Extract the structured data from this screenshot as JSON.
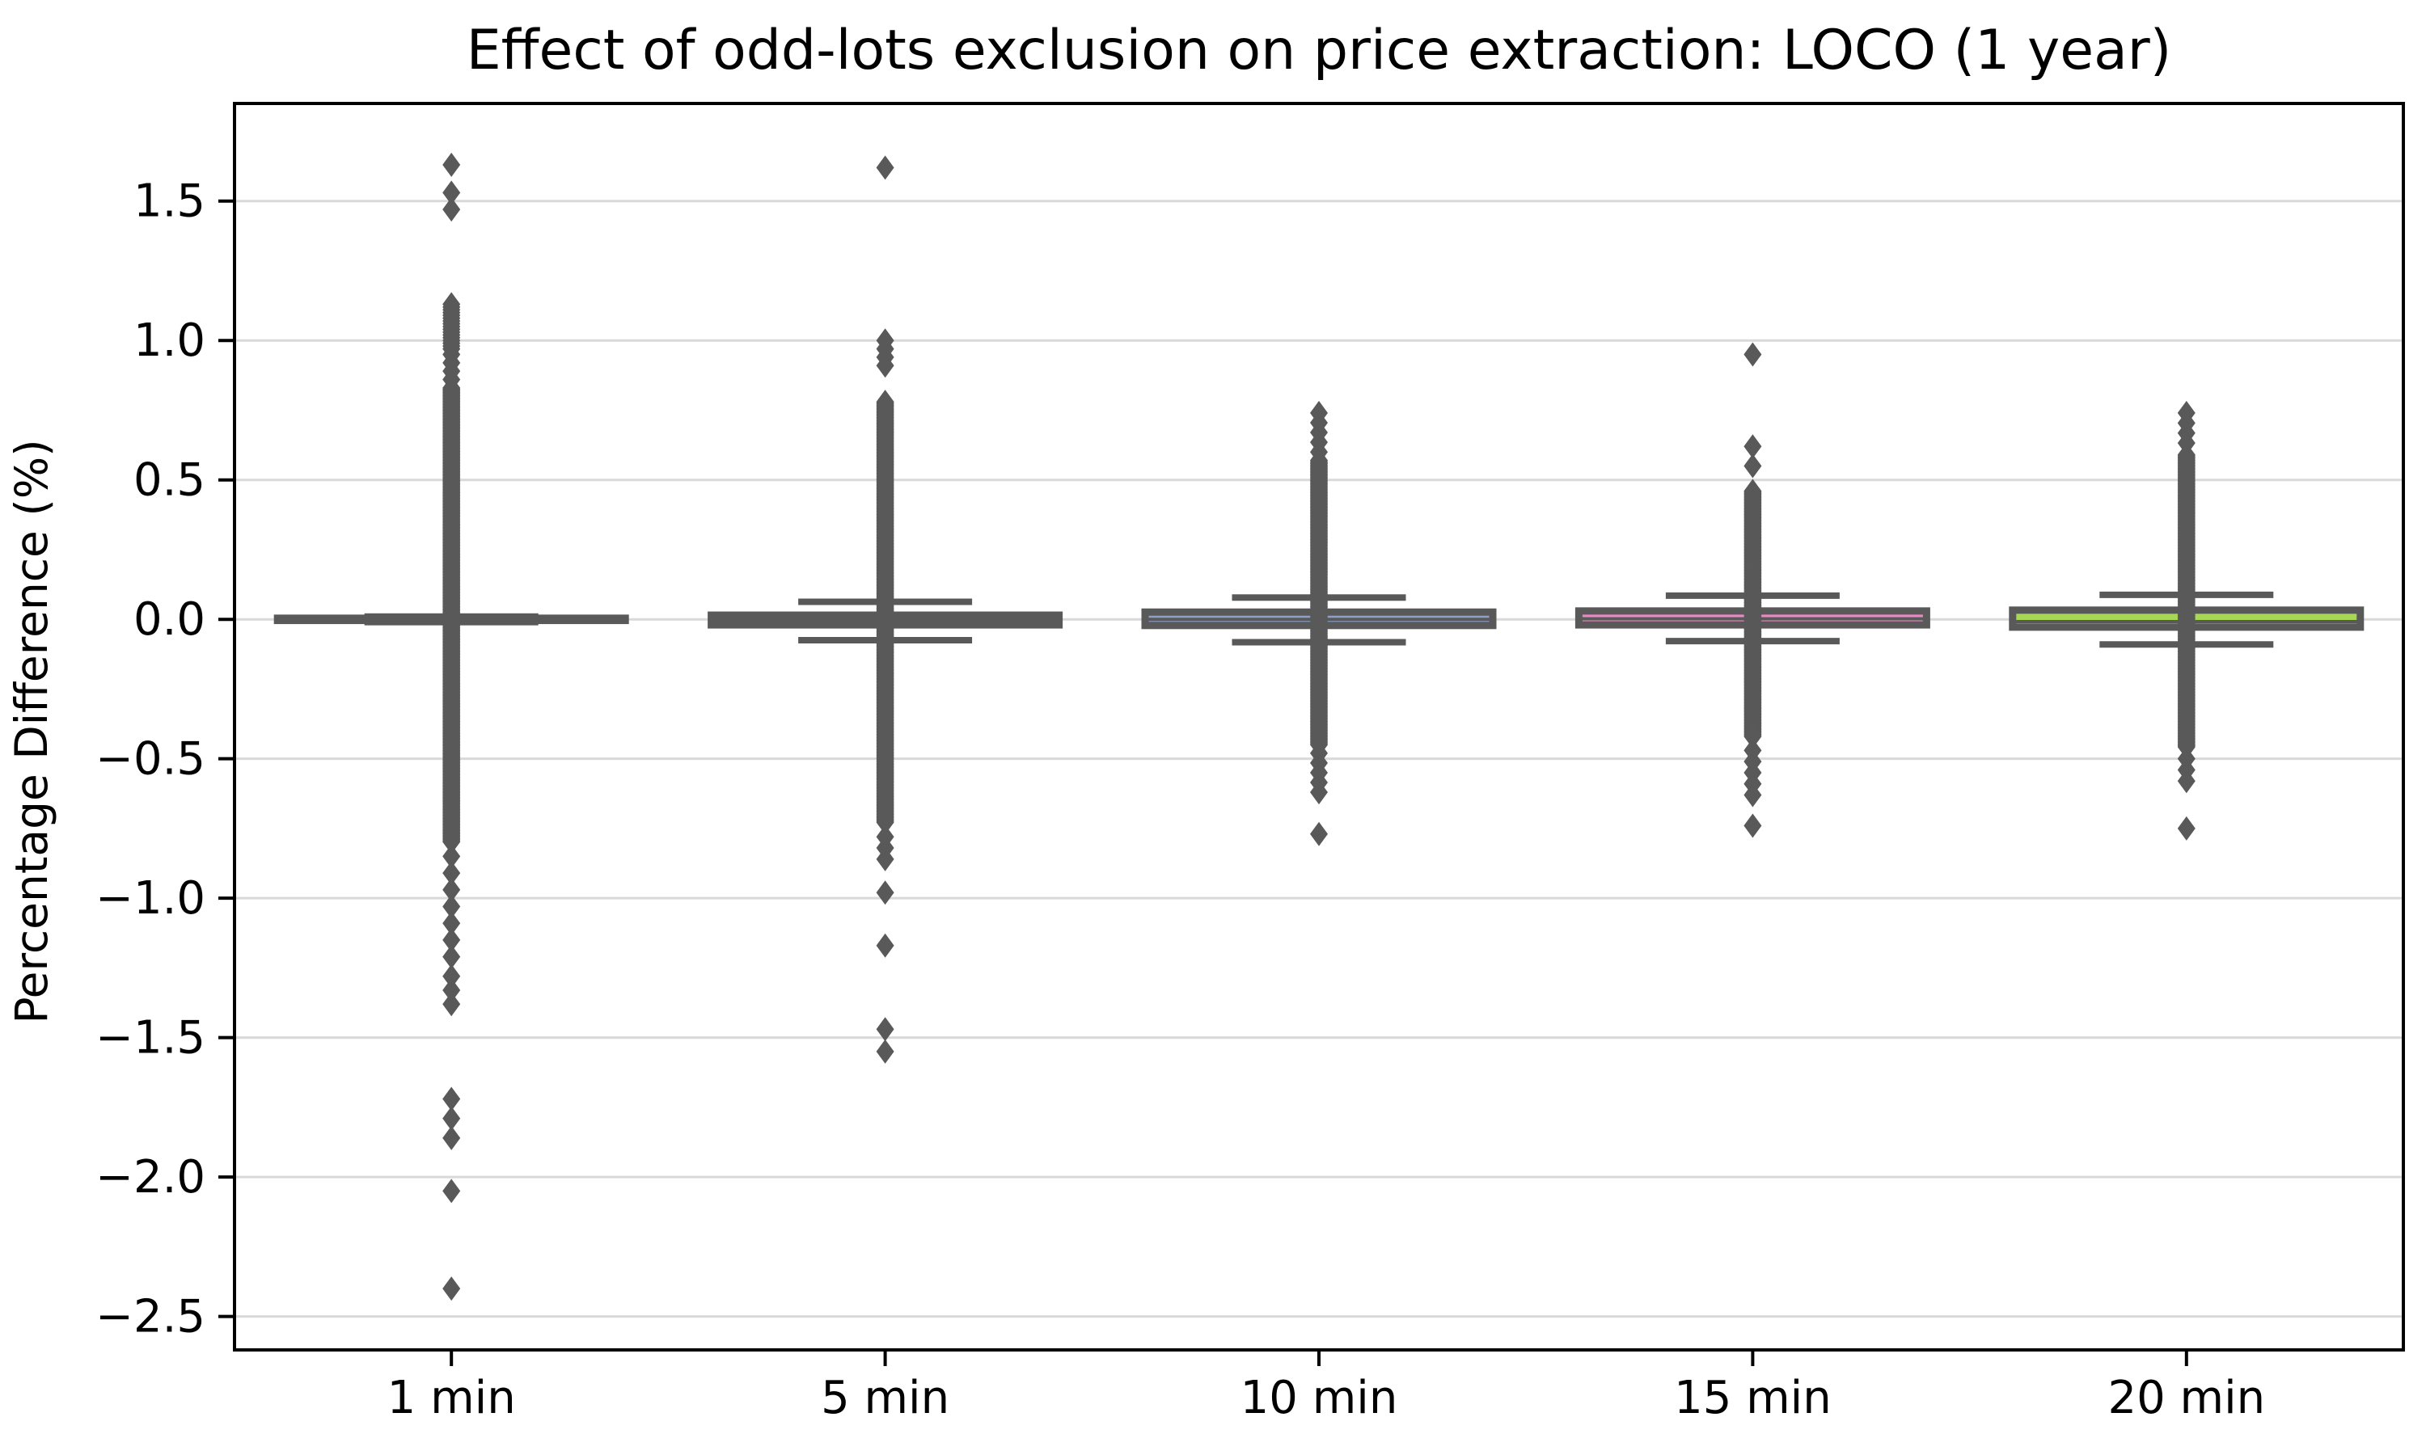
{
  "chart_data": {
    "type": "box",
    "title": "Effect of odd-lots exclusion on price extraction: LOCO (1 year)",
    "ylabel": "Percentage Difference (%)",
    "xlabel": "",
    "categories": [
      "1 min",
      "5 min",
      "10 min",
      "15 min",
      "20 min"
    ],
    "ylim": [
      -2.62,
      1.85
    ],
    "ytick_values": [
      1.5,
      1.0,
      0.5,
      0.0,
      -0.5,
      -1.0,
      -1.5,
      -2.0,
      -2.5
    ],
    "ytick_labels": [
      "1.5",
      "1.0",
      "0.5",
      "0.0",
      "−0.5",
      "−1.0",
      "−1.5",
      "−2.0",
      "−2.5"
    ],
    "grid": true,
    "legend": "none",
    "palette": [
      "#66C2A5",
      "#FC8D62",
      "#8DA0CB",
      "#E78AC3",
      "#A6D854"
    ],
    "edge_color": "#595959",
    "flier_color": "#595959",
    "grid_color": "#d9d9d9",
    "flier_marker": "thin-diamond",
    "series": [
      {
        "label": "1 min",
        "median": 0.0,
        "q1": -0.004,
        "q3": 0.004,
        "whisker_low": -0.01,
        "whisker_high": 0.01,
        "outlier_runs": [
          {
            "from": 1.13,
            "to": 0.97,
            "step": 0.01
          },
          {
            "from": 0.95,
            "to": 0.86,
            "step": 0.03
          },
          {
            "from": 0.83,
            "to": -0.8,
            "step": 0.004
          },
          {
            "from": -0.85,
            "to": -1.21,
            "step": 0.06
          },
          {
            "from": -1.28,
            "to": -1.38,
            "step": 0.05
          }
        ],
        "outliers": [
          1.63,
          1.53,
          1.47,
          -1.72,
          -1.79,
          -1.86,
          -2.05,
          -2.4
        ]
      },
      {
        "label": "5 min",
        "median": -0.003,
        "q1": -0.02,
        "q3": 0.015,
        "whisker_low": -0.075,
        "whisker_high": 0.063,
        "outlier_runs": [
          {
            "from": 1.0,
            "to": 0.91,
            "step": 0.03
          },
          {
            "from": 0.78,
            "to": -0.73,
            "step": 0.004
          },
          {
            "from": -0.78,
            "to": -0.86,
            "step": 0.04
          }
        ],
        "outliers": [
          1.62,
          -0.98,
          -1.17,
          -1.47,
          -1.55
        ]
      },
      {
        "label": "10 min",
        "median": 0.0,
        "q1": -0.022,
        "q3": 0.026,
        "whisker_low": -0.082,
        "whisker_high": 0.078,
        "outlier_runs": [
          {
            "from": 0.74,
            "to": 0.6,
            "step": 0.035
          },
          {
            "from": 0.57,
            "to": -0.45,
            "step": 0.004
          },
          {
            "from": -0.48,
            "to": -0.62,
            "step": 0.035
          }
        ],
        "outliers": [
          -0.77
        ]
      },
      {
        "label": "15 min",
        "median": 0.002,
        "q1": -0.02,
        "q3": 0.03,
        "whisker_low": -0.078,
        "whisker_high": 0.085,
        "outlier_runs": [
          {
            "from": 0.62,
            "to": 0.55,
            "step": 0.07
          },
          {
            "from": 0.46,
            "to": -0.42,
            "step": 0.004
          },
          {
            "from": -0.47,
            "to": -0.63,
            "step": 0.04
          }
        ],
        "outliers": [
          0.95,
          -0.74
        ]
      },
      {
        "label": "20 min",
        "median": -0.008,
        "q1": -0.028,
        "q3": 0.033,
        "whisker_low": -0.09,
        "whisker_high": 0.088,
        "outlier_runs": [
          {
            "from": 0.74,
            "to": 0.63,
            "step": 0.036
          },
          {
            "from": 0.59,
            "to": -0.46,
            "step": 0.004
          },
          {
            "from": -0.5,
            "to": -0.58,
            "step": 0.04
          }
        ],
        "outliers": [
          -0.75
        ]
      }
    ]
  }
}
